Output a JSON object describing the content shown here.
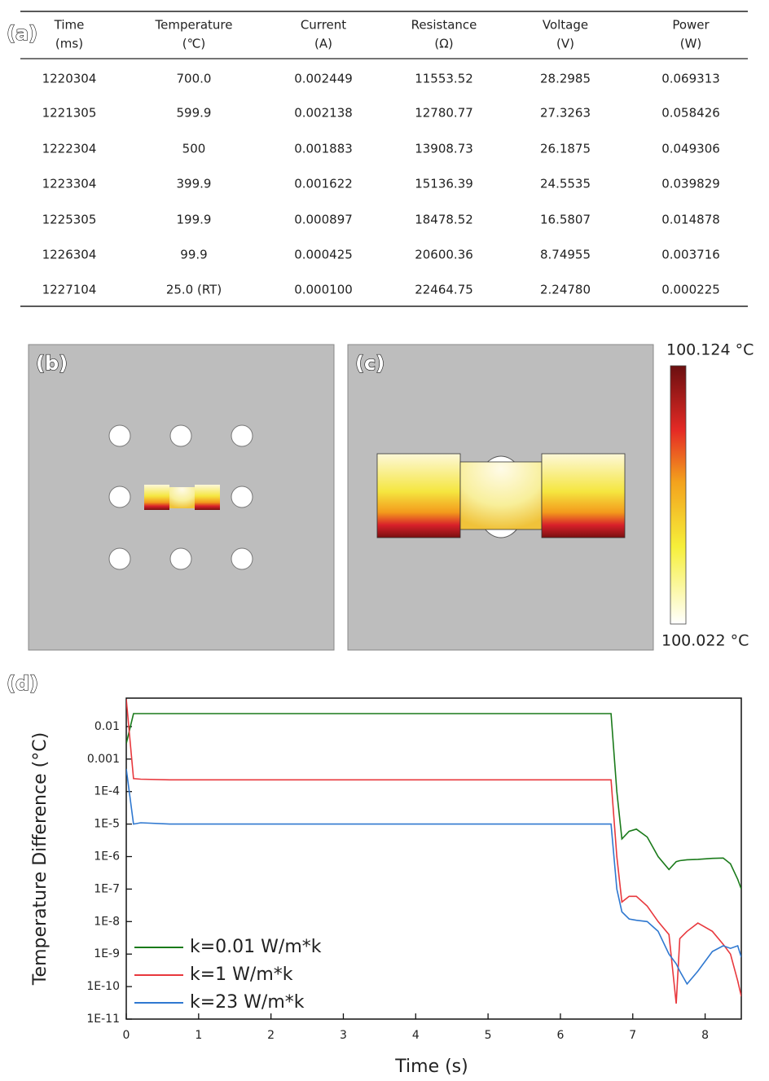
{
  "table": {
    "label": "(a)",
    "columns": [
      [
        "Time",
        "(ms)"
      ],
      [
        "Temperature",
        "(℃)"
      ],
      [
        "Current",
        "(A)"
      ],
      [
        "Resistance",
        "(Ω)"
      ],
      [
        "Voltage",
        "(V)"
      ],
      [
        "Power",
        "(W)"
      ]
    ],
    "rows": [
      [
        "1220304",
        "700.0",
        "0.002449",
        "11553.52",
        "28.2985",
        "0.069313"
      ],
      [
        "1221305",
        "599.9",
        "0.002138",
        "12780.77",
        "27.3263",
        "0.058426"
      ],
      [
        "1222304",
        "500",
        "0.001883",
        "13908.73",
        "26.1875",
        "0.049306"
      ],
      [
        "1223304",
        "399.9",
        "0.001622",
        "15136.39",
        "24.5535",
        "0.039829"
      ],
      [
        "1225305",
        "199.9",
        "0.000897",
        "18478.52",
        "16.5807",
        "0.014878"
      ],
      [
        "1226304",
        "99.9",
        "0.000425",
        "20600.36",
        "8.74955",
        "0.003716"
      ],
      [
        "1227104",
        "25.0 (RT)",
        "0.000100",
        "22464.75",
        "2.24780",
        "0.000225"
      ]
    ]
  },
  "panel_b": {
    "label": "(b)"
  },
  "panel_c": {
    "label": "(c)"
  },
  "colorbar": {
    "max_label": "100.124 °C",
    "min_label": "100.022 °C"
  },
  "chart_data": {
    "type": "line",
    "label": "(d)",
    "x_label": "Time (s)",
    "y_label": "Temperature Difference (°C)",
    "log_y": true,
    "legend": "lower left",
    "x": [
      0,
      0.1,
      0.2,
      0.6,
      6.7,
      6.78,
      6.85,
      6.95,
      7.05,
      7.2,
      7.35,
      7.5,
      7.6,
      7.65,
      7.75,
      7.9,
      8.1,
      8.25,
      8.35,
      8.45,
      8.5
    ],
    "xlim": [
      0,
      8.5
    ],
    "xticks": [
      0,
      1,
      2,
      3,
      4,
      5,
      6,
      7,
      8
    ],
    "ylim": [
      1e-11,
      0.075
    ],
    "yticks": [
      0.01,
      0.001,
      {
        "value": 0.0001,
        "label": "1E-4"
      },
      {
        "value": 1e-05,
        "label": "1E-5"
      },
      {
        "value": 1e-06,
        "label": "1E-6"
      },
      {
        "value": 1e-07,
        "label": "1E-7"
      },
      {
        "value": 1e-08,
        "label": "1E-8"
      },
      {
        "value": 1e-09,
        "label": "1E-9"
      },
      {
        "value": 1e-10,
        "label": "1E-10"
      },
      {
        "value": 1e-11,
        "label": "1E-11"
      }
    ],
    "series": [
      {
        "name": "k=0.01 W/m*k",
        "color": "#1a7a1a",
        "values": [
          0.003,
          0.025,
          0.025,
          0.025,
          0.025,
          0.0001,
          3.5e-06,
          6e-06,
          7e-06,
          4e-06,
          1e-06,
          4e-07,
          7e-07,
          7.5e-07,
          8e-07,
          8.2e-07,
          8.8e-07,
          9e-07,
          6e-07,
          2e-07,
          1e-07
        ]
      },
      {
        "name": "k=1 W/m*k",
        "color": "#e8383d",
        "values": [
          0.07,
          0.00025,
          0.00024,
          0.00023,
          0.00023,
          1e-06,
          4e-08,
          6e-08,
          6e-08,
          3e-08,
          1e-08,
          4e-09,
          3e-11,
          3e-09,
          5e-09,
          9e-09,
          5e-09,
          2e-09,
          1e-09,
          1.5e-10,
          5e-11
        ]
      },
      {
        "name": "k=23 W/m*k",
        "color": "#2f78d0",
        "values": [
          0.0005,
          1e-05,
          1.1e-05,
          1e-05,
          1e-05,
          1e-07,
          2e-08,
          1.2e-08,
          1.1e-08,
          1e-08,
          5e-09,
          1e-09,
          5e-10,
          3e-10,
          1.2e-10,
          3e-10,
          1.2e-09,
          1.8e-09,
          1.5e-09,
          1.8e-09,
          8e-10
        ]
      }
    ]
  }
}
